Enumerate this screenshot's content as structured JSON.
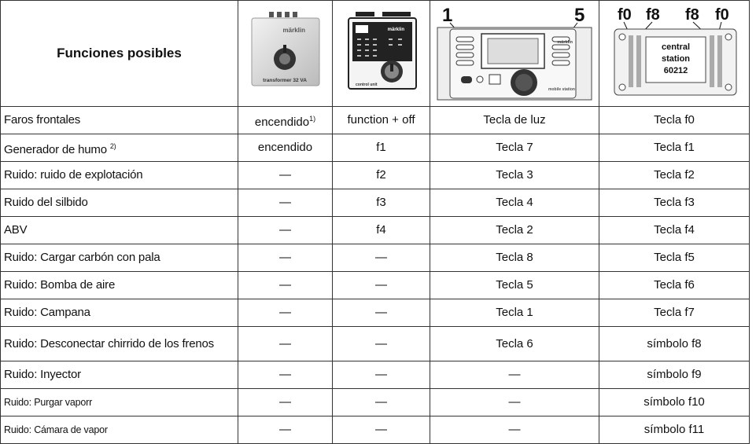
{
  "table": {
    "header": {
      "title": "Funciones posibles",
      "devices": [
        {
          "brand": "märklin",
          "label": "transformer 32 VA"
        },
        {
          "brand": "märklin",
          "label": "control unit"
        },
        {
          "callouts": [
            "1",
            "5"
          ],
          "brand": "märklin",
          "label": "mobile station"
        },
        {
          "callouts": [
            "f0",
            "f8",
            "f8",
            "f0"
          ],
          "label": [
            "central",
            "station",
            "60212"
          ]
        }
      ]
    },
    "rows": [
      [
        "Faros frontales",
        {
          "text": "encendido",
          "sup": "1)"
        },
        "function + off",
        "Tecla de luz",
        "Tecla f0"
      ],
      [
        {
          "text": "Generador de humo ",
          "sup": "2)"
        },
        "encendido",
        "f1",
        "Tecla 7",
        "Tecla f1"
      ],
      [
        "Ruido: ruido de explotación",
        "—",
        "f2",
        "Tecla 3",
        "Tecla f2"
      ],
      [
        "Ruido del silbido",
        "—",
        "f3",
        "Tecla 4",
        "Tecla f3"
      ],
      [
        "ABV",
        "—",
        "f4",
        "Tecla 2",
        "Tecla f4"
      ],
      [
        "Ruido: Cargar carbón con pala",
        "—",
        "—",
        "Tecla 8",
        "Tecla f5"
      ],
      [
        "Ruido: Bomba de aire",
        "—",
        "—",
        "Tecla 5",
        "Tecla f6"
      ],
      [
        "Ruido: Campana",
        "—",
        "—",
        "Tecla 1",
        "Tecla f7"
      ],
      [
        "Ruido: Desconectar chirrido de los frenos",
        "—",
        "—",
        "Tecla 6",
        "símbolo f8"
      ],
      [
        "Ruido: Inyector",
        "—",
        "—",
        "—",
        "símbolo f9"
      ],
      [
        "Ruido: Purgar vaporr",
        "—",
        "—",
        "—",
        "símbolo f10"
      ],
      [
        "Ruido: Cámara de vapor",
        "—",
        "—",
        "—",
        "símbolo f11"
      ]
    ]
  }
}
